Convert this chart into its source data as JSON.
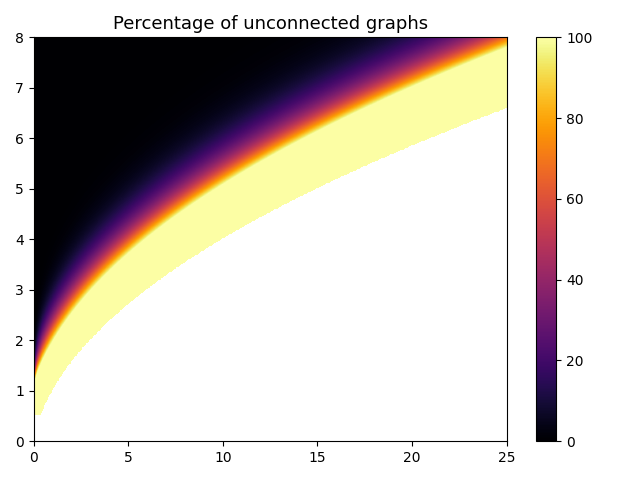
{
  "title": "Percentage of unconnected graphs",
  "xlim": [
    0,
    25
  ],
  "ylim": [
    0,
    8
  ],
  "xticks": [
    0,
    5,
    10,
    15,
    20,
    25
  ],
  "yticks": [
    0,
    1,
    2,
    3,
    4,
    5,
    6,
    7,
    8
  ],
  "colorbar_ticks": [
    0,
    20,
    40,
    60,
    80,
    100
  ],
  "colormap": "inferno",
  "x_max": 25,
  "y_max": 8,
  "nx": 600,
  "ny": 500,
  "vmin": 0,
  "vmax": 100,
  "title_fontsize": 13,
  "background_color": "white"
}
